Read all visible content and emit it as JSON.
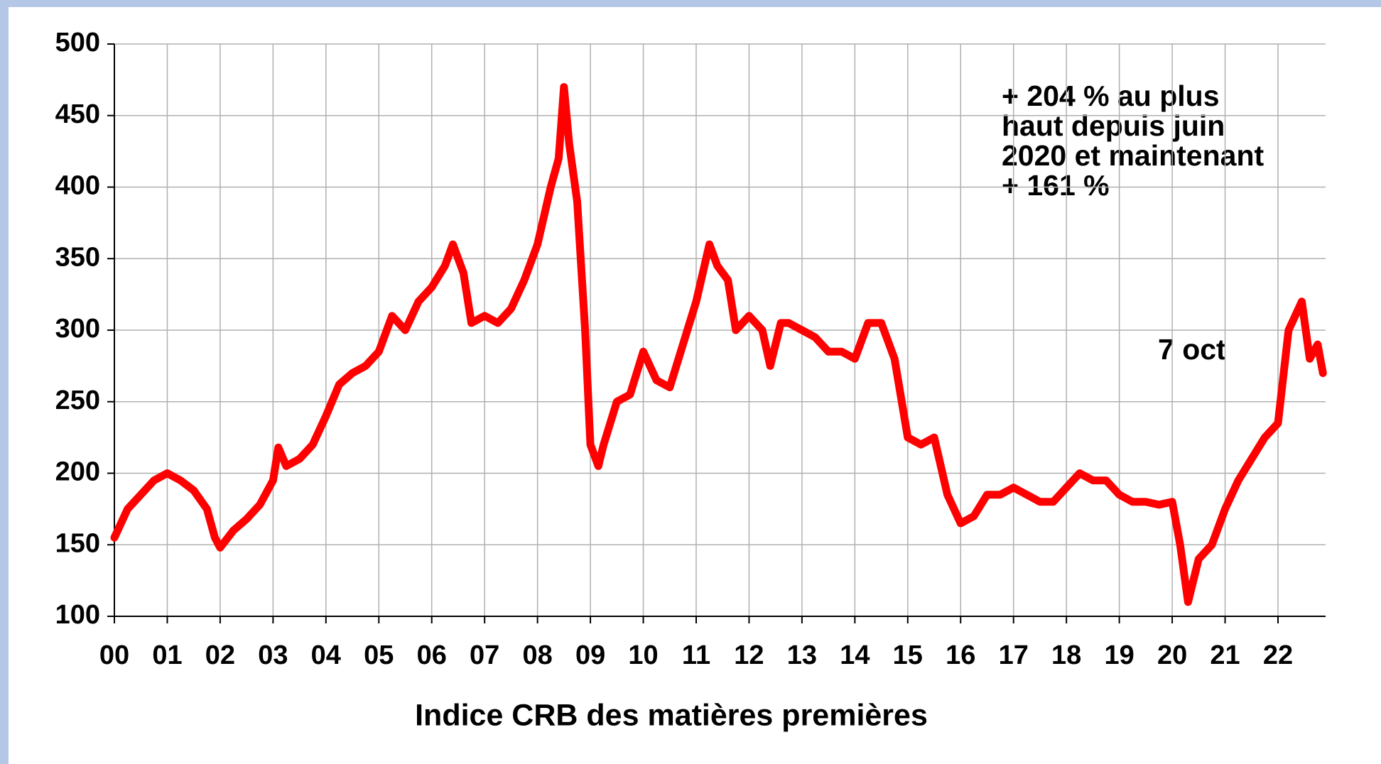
{
  "chart_data": {
    "type": "line",
    "xlabel": "Indice CRB des matières premières",
    "annotations": [
      "+ 204 %  au plus",
      "haut depuis juin",
      "2020 et maintenant",
      "+ 161 %"
    ],
    "date_note": "7 oct",
    "xlim": [
      0,
      22.9
    ],
    "xticks": [
      {
        "value": 0,
        "label": "00"
      },
      {
        "value": 1,
        "label": "01"
      },
      {
        "value": 2,
        "label": "02"
      },
      {
        "value": 3,
        "label": "03"
      },
      {
        "value": 4,
        "label": "04"
      },
      {
        "value": 5,
        "label": "05"
      },
      {
        "value": 6,
        "label": "06"
      },
      {
        "value": 7,
        "label": "07"
      },
      {
        "value": 8,
        "label": "08"
      },
      {
        "value": 9,
        "label": "09"
      },
      10,
      11,
      12,
      13,
      14,
      15,
      16,
      17,
      18,
      19,
      20,
      21,
      22
    ],
    "ylim": [
      100,
      500
    ],
    "yticks": [
      100,
      150,
      200,
      250,
      300,
      350,
      400,
      450,
      500
    ],
    "grid": true,
    "series": [
      {
        "name": "CRB",
        "color": "#ff0000",
        "x": [
          0,
          0.25,
          0.5,
          0.75,
          1.0,
          1.25,
          1.5,
          1.75,
          1.9,
          2.0,
          2.25,
          2.5,
          2.75,
          3.0,
          3.1,
          3.25,
          3.5,
          3.75,
          4.0,
          4.25,
          4.5,
          4.75,
          5.0,
          5.25,
          5.5,
          5.75,
          6.0,
          6.25,
          6.4,
          6.6,
          6.75,
          7.0,
          7.25,
          7.5,
          7.75,
          8.0,
          8.25,
          8.4,
          8.5,
          8.6,
          8.75,
          8.9,
          9.0,
          9.15,
          9.25,
          9.5,
          9.75,
          10.0,
          10.25,
          10.5,
          10.75,
          11.0,
          11.25,
          11.4,
          11.6,
          11.75,
          12.0,
          12.25,
          12.4,
          12.6,
          12.75,
          13.0,
          13.25,
          13.5,
          13.75,
          14.0,
          14.25,
          14.5,
          14.75,
          15.0,
          15.25,
          15.5,
          15.75,
          16.0,
          16.25,
          16.5,
          16.75,
          17.0,
          17.25,
          17.5,
          17.75,
          18.0,
          18.25,
          18.5,
          18.75,
          19.0,
          19.25,
          19.5,
          19.75,
          20.0,
          20.15,
          20.3,
          20.5,
          20.75,
          21.0,
          21.25,
          21.5,
          21.75,
          22.0,
          22.2,
          22.45,
          22.6,
          22.75,
          22.85
        ],
        "values": [
          155,
          175,
          185,
          195,
          200,
          195,
          188,
          175,
          155,
          148,
          160,
          168,
          178,
          195,
          218,
          205,
          210,
          220,
          240,
          262,
          270,
          275,
          285,
          310,
          300,
          320,
          330,
          345,
          360,
          340,
          305,
          310,
          305,
          315,
          335,
          360,
          400,
          420,
          470,
          430,
          390,
          300,
          220,
          205,
          220,
          250,
          255,
          285,
          265,
          260,
          290,
          320,
          360,
          345,
          335,
          300,
          310,
          300,
          275,
          305,
          305,
          300,
          295,
          285,
          285,
          280,
          305,
          305,
          280,
          225,
          220,
          225,
          185,
          165,
          170,
          185,
          185,
          190,
          185,
          180,
          180,
          190,
          200,
          195,
          195,
          185,
          180,
          180,
          178,
          180,
          150,
          110,
          140,
          150,
          175,
          195,
          210,
          225,
          235,
          300,
          320,
          280,
          290,
          270
        ]
      }
    ]
  }
}
